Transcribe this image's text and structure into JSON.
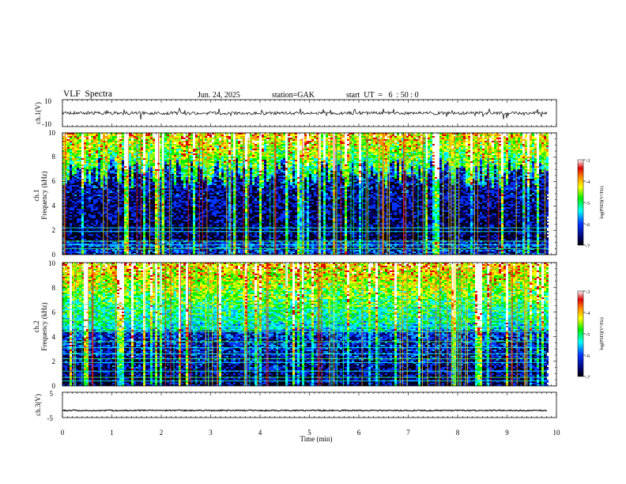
{
  "header": {
    "title": "VLF  Spectra",
    "date": "Jun. 24, 2025",
    "station": "station=GAK",
    "start": "start  UT  =   6  : 50 : 0"
  },
  "colors": {
    "trace": "#000000",
    "frame": "#000000",
    "colormap": [
      "#ffffff",
      "#e00000",
      "#ff8800",
      "#ffff00",
      "#00ee00",
      "#00ffff",
      "#0030ff",
      "#000060",
      "#000000"
    ]
  },
  "chart_data": [
    {
      "type": "line",
      "panel": "ch1-waveform",
      "ylabel": "ch.1(V)",
      "ylim": [
        -10,
        10
      ],
      "yticks": [
        "10",
        "-10"
      ],
      "x_units": "min",
      "xlim": [
        0,
        10
      ],
      "series": [
        {
          "approx_level": 0,
          "approx_amplitude": 1
        }
      ]
    },
    {
      "type": "heatmap",
      "panel": "ch1-spectrogram",
      "ylabel_channel": "ch.1",
      "ylabel": "Frequency  (kHz)",
      "ylim": [
        0,
        10
      ],
      "yticks": [
        "0",
        "2",
        "4",
        "6",
        "8",
        "10"
      ],
      "xlim": [
        0,
        9.85
      ],
      "colorbar": {
        "label": "log(PSD)(V²/Hz)",
        "range": [
          -7,
          -3
        ],
        "ticks": [
          "-3",
          "-4",
          "-5",
          "-6",
          "-7"
        ]
      }
    },
    {
      "type": "heatmap",
      "panel": "ch2-spectrogram",
      "ylabel_channel": "ch.2",
      "ylabel": "Frequency  (kHz)",
      "ylim": [
        0,
        10
      ],
      "yticks": [
        "0",
        "2",
        "4",
        "6",
        "8",
        "10"
      ],
      "xlim": [
        0,
        9.85
      ],
      "colorbar": {
        "label": "log(PSD)(V²/Hz)",
        "range": [
          -7,
          -3
        ],
        "ticks": [
          "-3",
          "-4",
          "-5",
          "-6",
          "-7"
        ]
      }
    },
    {
      "type": "line",
      "panel": "ch3-waveform",
      "ylabel": "ch.3(V)",
      "ylim": [
        -5,
        5
      ],
      "yticks": [
        "5",
        "-5"
      ],
      "xlim": [
        0,
        10
      ],
      "xlabel": "Time  (min)",
      "xticks": [
        "0",
        "1",
        "2",
        "3",
        "4",
        "5",
        "6",
        "7",
        "8",
        "9",
        "10"
      ],
      "series": [
        {
          "approx_level": -2.2,
          "approx_amplitude": 0.2
        }
      ]
    }
  ]
}
